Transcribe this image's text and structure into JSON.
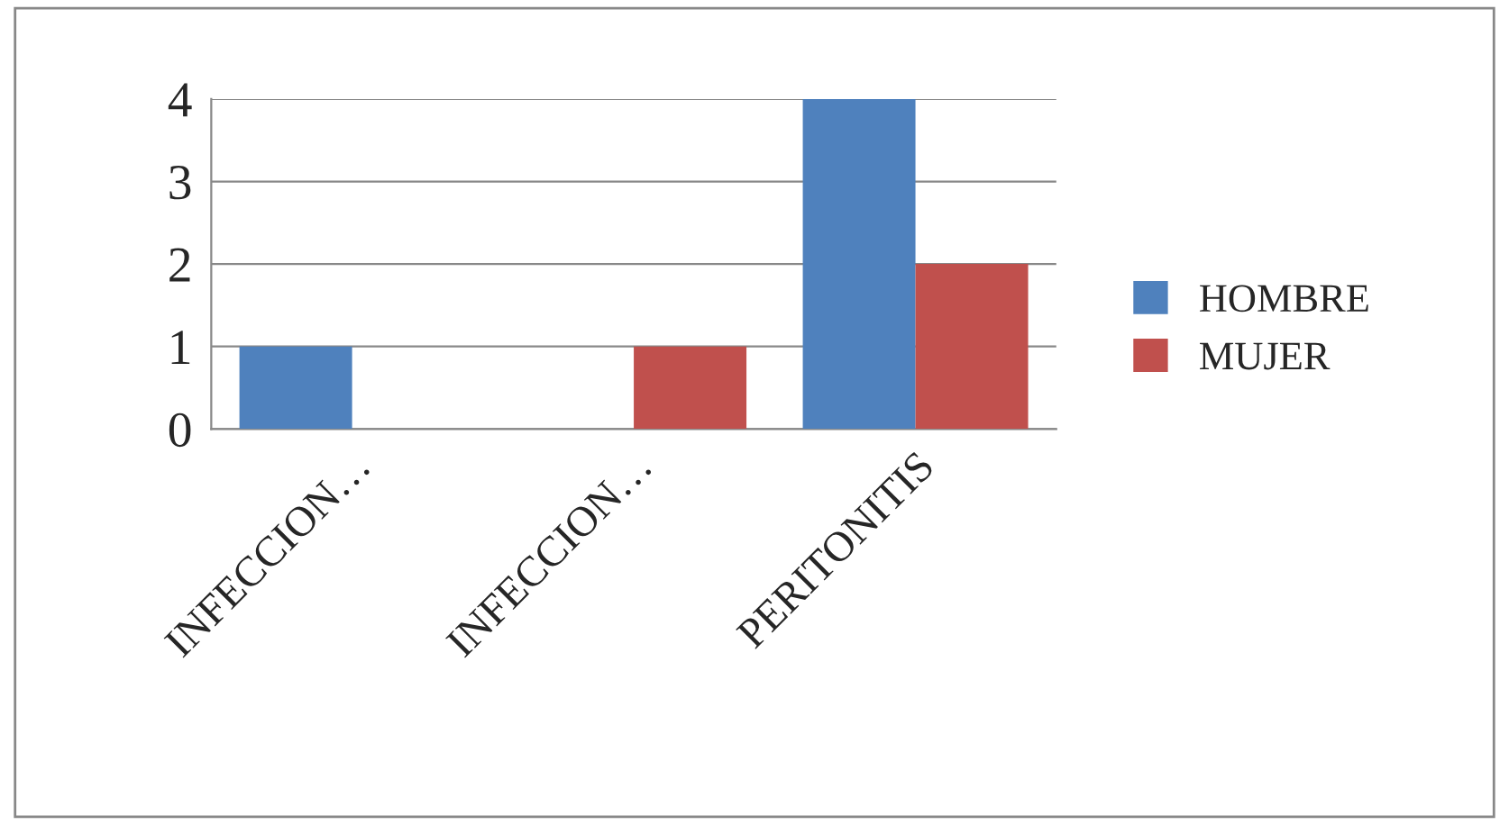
{
  "chart_data": {
    "type": "bar",
    "categories": [
      "INFECCION…",
      "INFECCION…",
      "PERITONITIS"
    ],
    "series": [
      {
        "name": "HOMBRE",
        "color": "#4f81bd",
        "values": [
          1,
          null,
          4
        ]
      },
      {
        "name": "MUJER",
        "color": "#c0504d",
        "values": [
          null,
          1,
          2
        ]
      }
    ],
    "ylim": [
      0,
      4
    ],
    "yticks": [
      0,
      1,
      2,
      3,
      4
    ],
    "grid": "y",
    "legend": "right"
  }
}
